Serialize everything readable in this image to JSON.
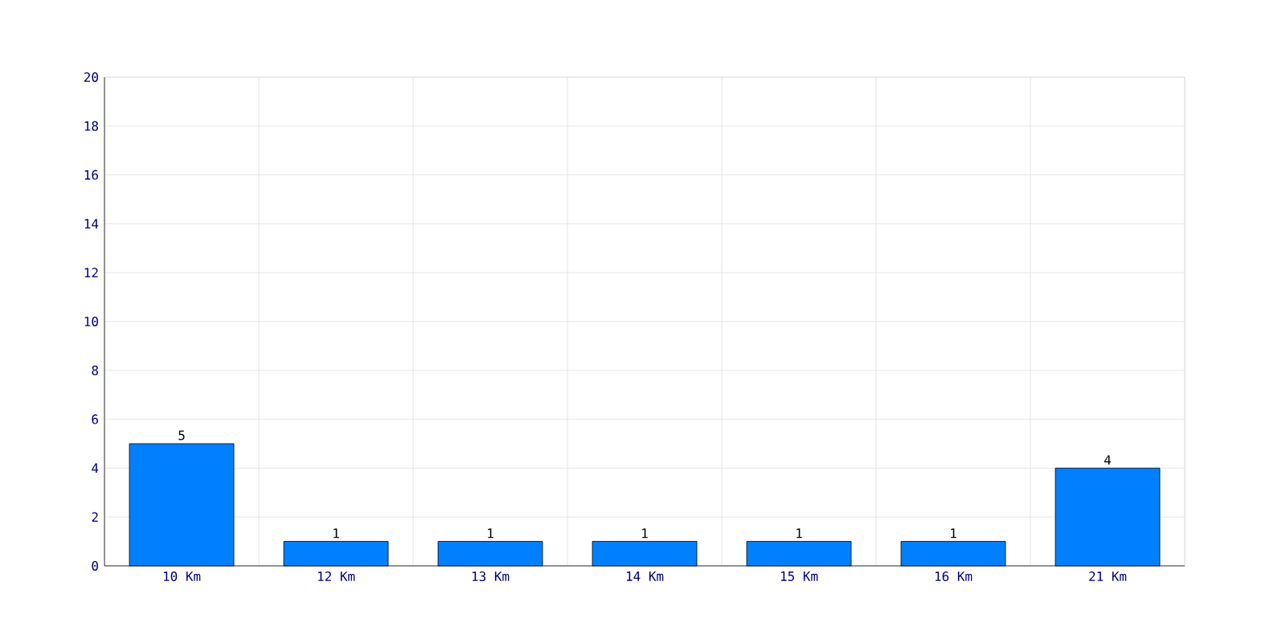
{
  "chart_data": {
    "type": "bar",
    "categories": [
      "10 Km",
      "12 Km",
      "13 Km",
      "14 Km",
      "15 Km",
      "16 Km",
      "21 Km"
    ],
    "values": [
      5,
      1,
      1,
      1,
      1,
      1,
      4
    ],
    "color": "#0080ff",
    "ylim": [
      0,
      20
    ],
    "yticks": [
      0,
      2,
      4,
      6,
      8,
      10,
      12,
      14,
      16,
      18,
      20
    ],
    "grid": true,
    "data_labels": true
  }
}
